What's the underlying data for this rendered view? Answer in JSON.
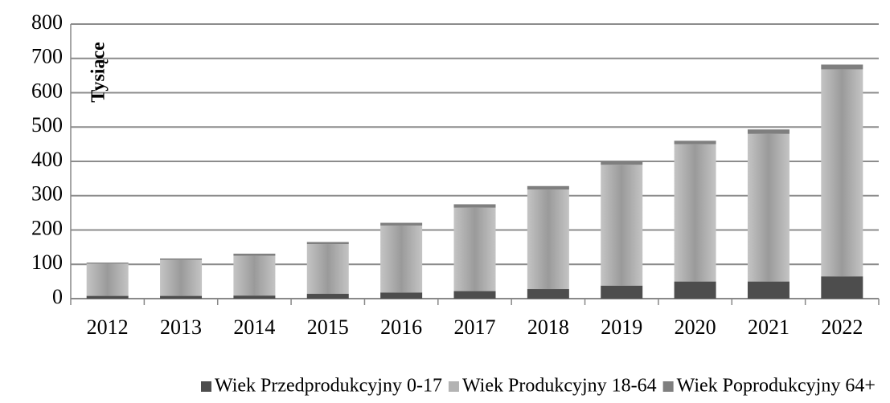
{
  "chart_data": {
    "type": "stacked_bar",
    "y_label": "Tysiące",
    "categories": [
      "2012",
      "2013",
      "2014",
      "2015",
      "2016",
      "2017",
      "2018",
      "2019",
      "2020",
      "2021",
      "2022"
    ],
    "series": [
      {
        "name": "Wiek Przedprodukcyjny 0-17",
        "color": "#4d4d4d",
        "values": [
          8,
          8,
          9,
          14,
          18,
          22,
          28,
          38,
          50,
          50,
          65
        ]
      },
      {
        "name": "Wiek Produkcyjny 18-64",
        "color": "#b3b3b3",
        "values": [
          94,
          105,
          116,
          145,
          195,
          243,
          290,
          352,
          400,
          430,
          603
        ]
      },
      {
        "name": "Wiek Poprodukcyjny 64+",
        "color": "#7f7f7f",
        "values": [
          3,
          4,
          6,
          6,
          8,
          10,
          10,
          10,
          10,
          13,
          14
        ]
      }
    ],
    "ylim": [
      0,
      800
    ],
    "yticks": [
      0,
      100,
      200,
      300,
      400,
      500,
      600,
      700,
      800
    ],
    "grid": true,
    "legend": "bottom"
  }
}
